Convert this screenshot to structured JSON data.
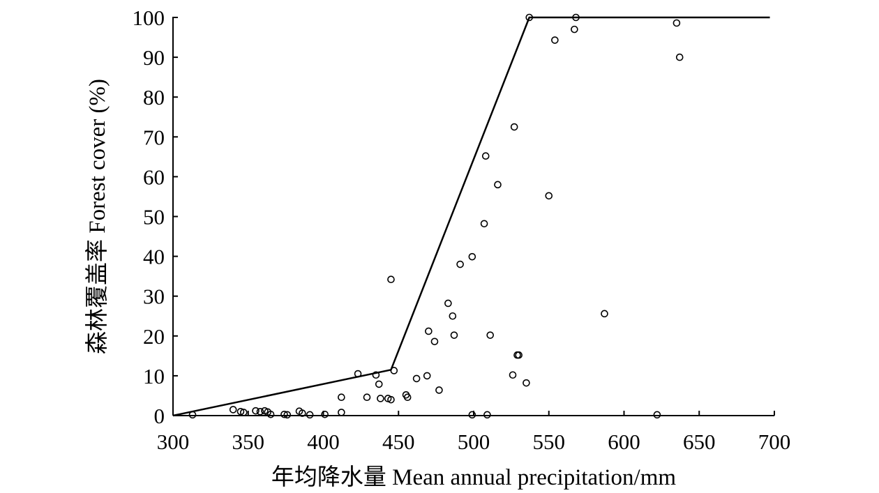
{
  "chart_data": {
    "type": "scatter",
    "xlabel": "年均降水量 Mean annual precipitation/mm",
    "ylabel": "森林覆盖率 Forest cover (%)",
    "xlim": [
      300,
      700
    ],
    "ylim": [
      0,
      100
    ],
    "x_ticks": [
      300,
      350,
      400,
      450,
      500,
      550,
      600,
      650,
      700
    ],
    "y_ticks": [
      0,
      10,
      20,
      30,
      40,
      50,
      60,
      70,
      80,
      90,
      100
    ],
    "grid": false,
    "legend": "none",
    "points": [
      {
        "x": 313,
        "y": 0.2
      },
      {
        "x": 340,
        "y": 1.5
      },
      {
        "x": 345,
        "y": 1.0
      },
      {
        "x": 347,
        "y": 0.8
      },
      {
        "x": 355,
        "y": 1.2
      },
      {
        "x": 358,
        "y": 1.0
      },
      {
        "x": 361,
        "y": 1.2
      },
      {
        "x": 363,
        "y": 0.9
      },
      {
        "x": 365,
        "y": 0.3
      },
      {
        "x": 374,
        "y": 0.3
      },
      {
        "x": 376,
        "y": 0.2
      },
      {
        "x": 384,
        "y": 1.1
      },
      {
        "x": 386,
        "y": 0.6
      },
      {
        "x": 391,
        "y": 0.2
      },
      {
        "x": 401,
        "y": 0.3
      },
      {
        "x": 412,
        "y": 4.6
      },
      {
        "x": 412,
        "y": 0.8
      },
      {
        "x": 423,
        "y": 10.5
      },
      {
        "x": 429,
        "y": 4.6
      },
      {
        "x": 435,
        "y": 10.2
      },
      {
        "x": 437,
        "y": 7.9
      },
      {
        "x": 438,
        "y": 4.3
      },
      {
        "x": 443,
        "y": 4.3
      },
      {
        "x": 445,
        "y": 34.2
      },
      {
        "x": 445,
        "y": 4.0
      },
      {
        "x": 447,
        "y": 11.3
      },
      {
        "x": 455,
        "y": 5.2
      },
      {
        "x": 456,
        "y": 4.6
      },
      {
        "x": 462,
        "y": 9.3
      },
      {
        "x": 469,
        "y": 10.0
      },
      {
        "x": 470,
        "y": 21.2
      },
      {
        "x": 474,
        "y": 18.6
      },
      {
        "x": 477,
        "y": 6.4
      },
      {
        "x": 483,
        "y": 28.2
      },
      {
        "x": 486,
        "y": 25.0
      },
      {
        "x": 487,
        "y": 20.2
      },
      {
        "x": 491,
        "y": 38.0
      },
      {
        "x": 499,
        "y": 39.9
      },
      {
        "x": 499,
        "y": 0.2
      },
      {
        "x": 507,
        "y": 48.2
      },
      {
        "x": 508,
        "y": 65.2
      },
      {
        "x": 509,
        "y": 0.2
      },
      {
        "x": 511,
        "y": 20.2
      },
      {
        "x": 516,
        "y": 58.0
      },
      {
        "x": 526,
        "y": 10.2
      },
      {
        "x": 527,
        "y": 72.5
      },
      {
        "x": 529,
        "y": 15.2
      },
      {
        "x": 530,
        "y": 15.2
      },
      {
        "x": 535,
        "y": 8.2
      },
      {
        "x": 537,
        "y": 100
      },
      {
        "x": 550,
        "y": 55.2
      },
      {
        "x": 554,
        "y": 94.3
      },
      {
        "x": 567,
        "y": 97.0
      },
      {
        "x": 568,
        "y": 100
      },
      {
        "x": 587,
        "y": 25.6
      },
      {
        "x": 622,
        "y": 0.2
      },
      {
        "x": 635,
        "y": 98.6
      },
      {
        "x": 637,
        "y": 90.0
      }
    ],
    "fit_line": {
      "x": [
        300,
        445,
        537,
        697
      ],
      "y": [
        0,
        11.5,
        100,
        100
      ]
    }
  }
}
